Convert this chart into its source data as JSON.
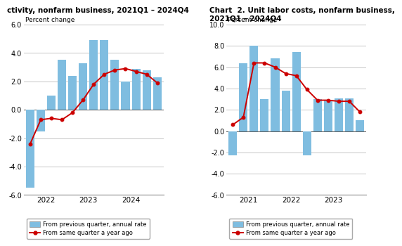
{
  "chart1": {
    "title": "ctivity, nonfarm business, 2021Q1 – 2024Q4",
    "ylabel": "Percent change",
    "ylim": [
      -6.0,
      6.0
    ],
    "yticks": [
      -6.0,
      -4.0,
      -2.0,
      0.0,
      2.0,
      4.0,
      6.0
    ],
    "bar_values": [
      -5.5,
      -1.5,
      1.0,
      3.5,
      2.4,
      3.3,
      4.9,
      4.9,
      3.5,
      2.0,
      2.9,
      2.8,
      2.3
    ],
    "line_values": [
      -2.4,
      -0.7,
      -0.6,
      -0.7,
      -0.2,
      0.7,
      1.8,
      2.5,
      2.8,
      2.9,
      2.7,
      2.5,
      1.9
    ],
    "xtick_labels": [
      "2022",
      "2023",
      "2024"
    ],
    "xtick_positions": [
      1.5,
      5.5,
      9.5
    ],
    "n_bars": 13
  },
  "chart2": {
    "title": "Chart  2. Unit labor costs, nonfarm business,\n2021Q1 – 2024Q4",
    "ylabel": "Percent change",
    "ylim": [
      -6.0,
      10.0
    ],
    "yticks": [
      -6.0,
      -4.0,
      -2.0,
      0.0,
      2.0,
      4.0,
      6.0,
      8.0,
      10.0
    ],
    "bar_values": [
      -2.3,
      6.4,
      8.0,
      3.0,
      6.8,
      3.8,
      7.4,
      -2.3,
      3.0,
      2.9,
      3.1,
      3.1,
      1.0
    ],
    "line_values": [
      0.6,
      1.3,
      6.4,
      6.4,
      6.0,
      5.4,
      5.2,
      3.9,
      2.9,
      2.9,
      2.8,
      2.8,
      1.8
    ],
    "xtick_labels": [
      "2021",
      "2022",
      "2023"
    ],
    "xtick_positions": [
      1.5,
      5.5,
      9.5
    ],
    "n_bars": 13
  },
  "bar_color": "#7fbde0",
  "line_color": "#cc0000",
  "legend_bar_label": "From previous quarter, annual rate",
  "legend_line_label": "From same quarter a year ago"
}
